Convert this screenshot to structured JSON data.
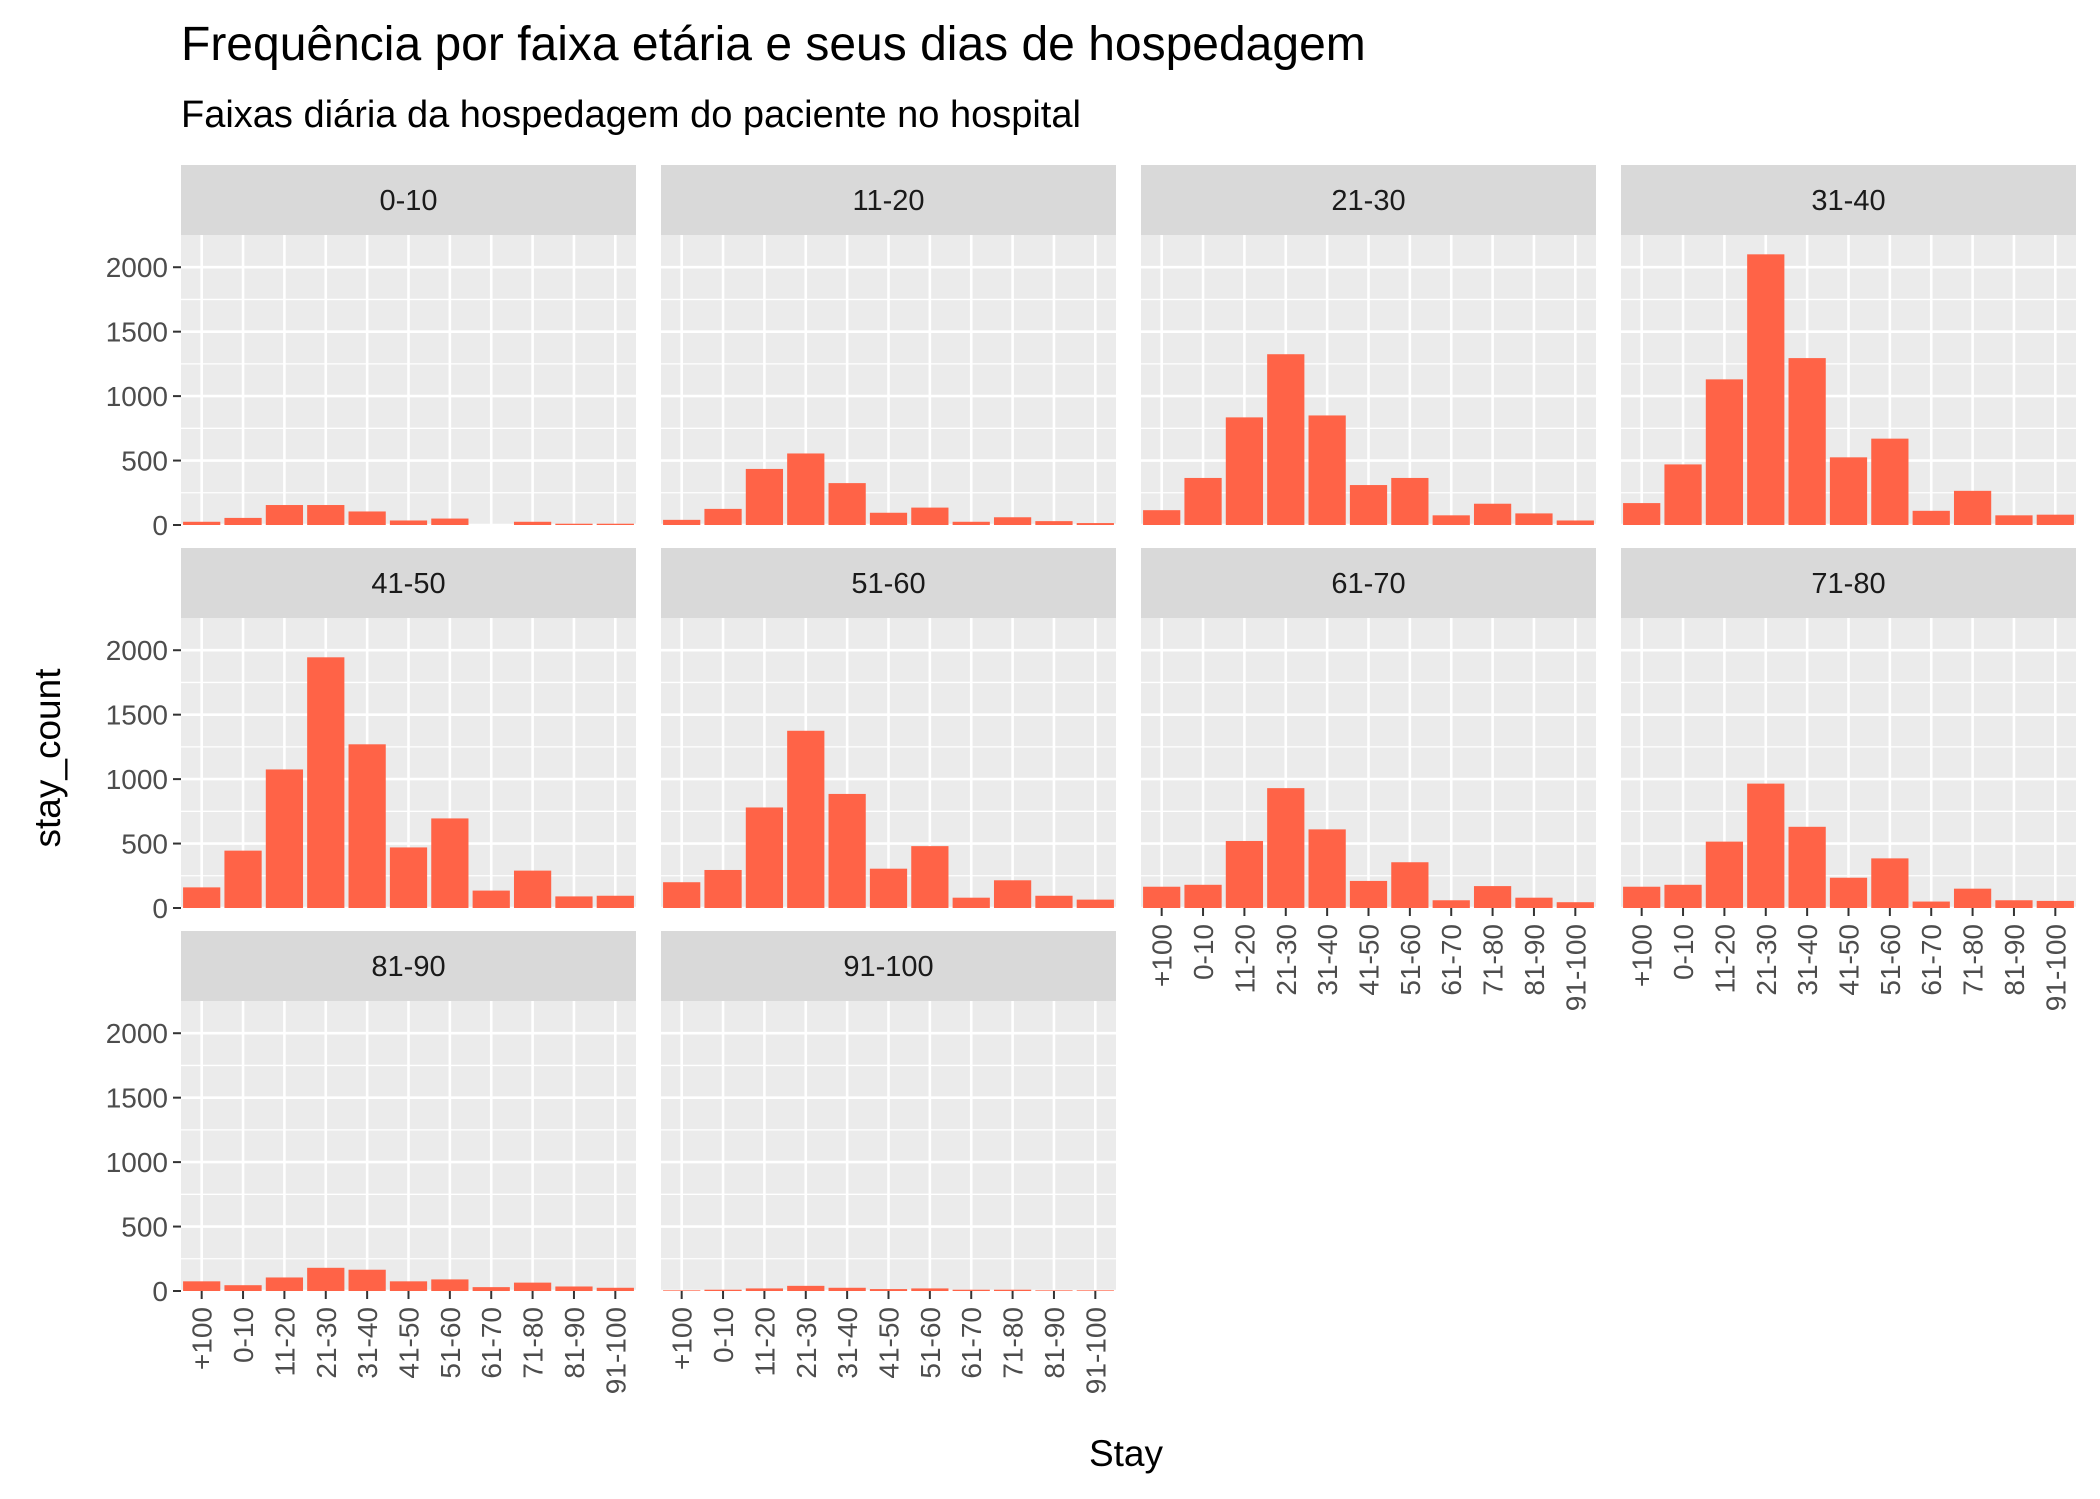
{
  "title": "Frequência por faixa etária e seus dias de hospedagem",
  "subtitle": "Faixas diária da hospedagem do paciente no hospital",
  "chart_data": {
    "type": "bar",
    "facet_by": "Age",
    "title": "Frequência por faixa etária e seus dias de hospedagem",
    "subtitle": "Faixas diária da hospedagem do paciente no hospital",
    "xlabel": "Stay",
    "ylabel": "stay_count",
    "categories": [
      "+100",
      "0-10",
      "11-20",
      "21-30",
      "31-40",
      "41-50",
      "51-60",
      "61-70",
      "71-80",
      "81-90",
      "91-100"
    ],
    "ylim": [
      0,
      2250
    ],
    "yticks": [
      0,
      500,
      1000,
      1500,
      2000
    ],
    "grid": true,
    "bar_color": "#ff6347",
    "panel_background": "#ebebeb",
    "strip_background": "#d9d9d9",
    "facets": [
      {
        "label": "0-10",
        "values": [
          25,
          55,
          155,
          155,
          105,
          35,
          50,
          0,
          25,
          10,
          10
        ]
      },
      {
        "label": "11-20",
        "values": [
          40,
          125,
          435,
          555,
          325,
          95,
          135,
          25,
          60,
          30,
          15
        ]
      },
      {
        "label": "21-30",
        "values": [
          115,
          365,
          835,
          1325,
          850,
          310,
          365,
          75,
          165,
          90,
          35
        ]
      },
      {
        "label": "31-40",
        "values": [
          170,
          470,
          1130,
          2100,
          1295,
          525,
          670,
          110,
          265,
          75,
          80
        ]
      },
      {
        "label": "41-50",
        "values": [
          160,
          445,
          1075,
          1945,
          1270,
          470,
          695,
          135,
          290,
          90,
          95
        ]
      },
      {
        "label": "51-60",
        "values": [
          200,
          295,
          780,
          1375,
          885,
          305,
          480,
          80,
          215,
          95,
          65
        ]
      },
      {
        "label": "61-70",
        "values": [
          165,
          180,
          520,
          930,
          610,
          210,
          355,
          60,
          170,
          80,
          45
        ]
      },
      {
        "label": "71-80",
        "values": [
          165,
          180,
          515,
          965,
          630,
          235,
          385,
          50,
          150,
          60,
          55
        ]
      },
      {
        "label": "81-90",
        "values": [
          75,
          45,
          105,
          180,
          165,
          75,
          90,
          30,
          65,
          35,
          25
        ]
      },
      {
        "label": "91-100",
        "values": [
          5,
          10,
          20,
          40,
          25,
          15,
          20,
          10,
          10,
          5,
          5
        ]
      }
    ]
  }
}
